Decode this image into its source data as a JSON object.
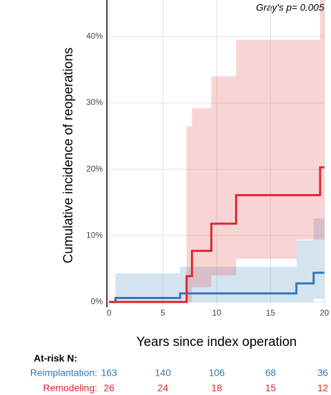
{
  "chart_data": {
    "type": "step",
    "annotation": "Gray's p= 0.005",
    "x_label": "Years since index operation",
    "y_label": "Cumulative incidence of reoperations",
    "xlim": [
      -0.2,
      20.1
    ],
    "xticks": [
      0,
      5,
      10,
      15,
      20
    ],
    "ylim": [
      -0.8,
      45.5
    ],
    "yticks": [
      {
        "value": 0,
        "label": "0%"
      },
      {
        "value": 10,
        "label": "10%"
      },
      {
        "value": 20,
        "label": "20%"
      },
      {
        "value": 30,
        "label": "30%"
      },
      {
        "value": 40,
        "label": "40%"
      }
    ],
    "grid": true,
    "series": [
      {
        "color": "#2f78b7",
        "x": [
          0,
          0.6,
          6.6,
          17.4,
          19.0,
          20
        ],
        "values": [
          0,
          0.6,
          1.3,
          2.8,
          4.4,
          4.4
        ],
        "lower": [
          0,
          0,
          0,
          0,
          0.5,
          0.5
        ],
        "upper": [
          0,
          4.3,
          5.3,
          9.3,
          12.6,
          12.6
        ]
      },
      {
        "color": "#e0262b",
        "x": [
          0,
          7.2,
          7.7,
          9.5,
          11.8,
          17.4,
          19.6,
          20
        ],
        "values": [
          0,
          3.9,
          7.7,
          11.8,
          16.1,
          16.1,
          20.3,
          20.3
        ],
        "lower": [
          0,
          0,
          2.2,
          4.0,
          6.5,
          9.4,
          9.4,
          9.4
        ],
        "upper": [
          0,
          26.5,
          29.2,
          34.0,
          39.5,
          39.5,
          46,
          46
        ]
      }
    ],
    "risk_table": {
      "title": "At-risk N:",
      "times": [
        0,
        5,
        10,
        15,
        20
      ],
      "rows": [
        {
          "name": "Reimplantation:",
          "color": "#2f78b7",
          "values": [
            163,
            140,
            106,
            68,
            36
          ]
        },
        {
          "name": "Remodeling:",
          "color": "#e0262b",
          "values": [
            26,
            24,
            18,
            15,
            12
          ]
        }
      ]
    }
  }
}
